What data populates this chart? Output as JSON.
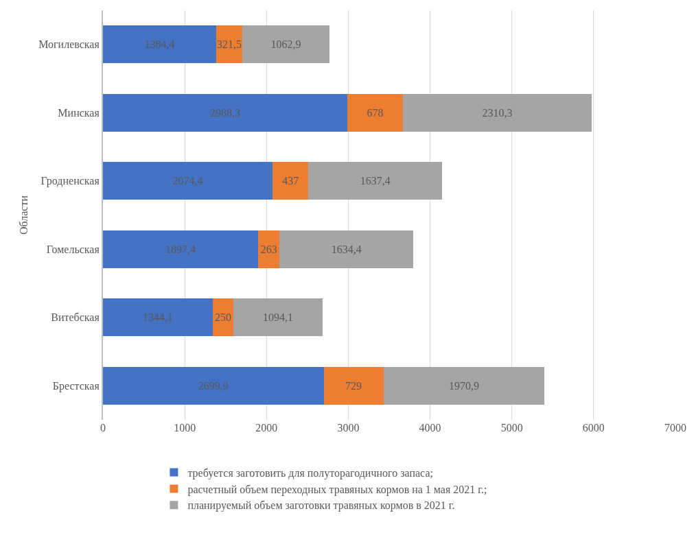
{
  "chart_data": {
    "type": "bar",
    "orientation": "horizontal",
    "stacked": true,
    "ylabel": "Области",
    "categories": [
      "Могилевская",
      "Минская",
      "Гродненская",
      "Гомельская",
      "Витебская",
      "Брестская"
    ],
    "series": [
      {
        "name": "требуется заготовить для полуторагодичного запаса;",
        "color": "#4472c4",
        "values": [
          1384.4,
          2988.3,
          2074.4,
          1897.4,
          1344.1,
          2699.9
        ],
        "value_labels": [
          "1384,4",
          "2988,3",
          "2074,4",
          "1897,4",
          "1344,1",
          "2699,9"
        ]
      },
      {
        "name": "расчетный объем переходных травяных кормов на 1 мая 2021 г.;",
        "color": "#ed7d31",
        "values": [
          321.5,
          678,
          437,
          263,
          250,
          729
        ],
        "value_labels": [
          "321,5",
          "678",
          "437",
          "263",
          "250",
          "729"
        ]
      },
      {
        "name": "планируемый объем заготовки травяных кормов в 2021 г.",
        "color": "#a5a5a5",
        "values": [
          1062.9,
          2310.3,
          1637.4,
          1634.4,
          1094.1,
          1970.9
        ],
        "value_labels": [
          "1062,9",
          "2310,3",
          "1637,4",
          "1634,4",
          "1094,1",
          "1970,9"
        ]
      }
    ],
    "xlim": [
      0,
      7000
    ],
    "xticks": [
      0,
      1000,
      2000,
      3000,
      4000,
      5000,
      6000,
      7000
    ],
    "grid": "x",
    "legend": "bottom"
  }
}
